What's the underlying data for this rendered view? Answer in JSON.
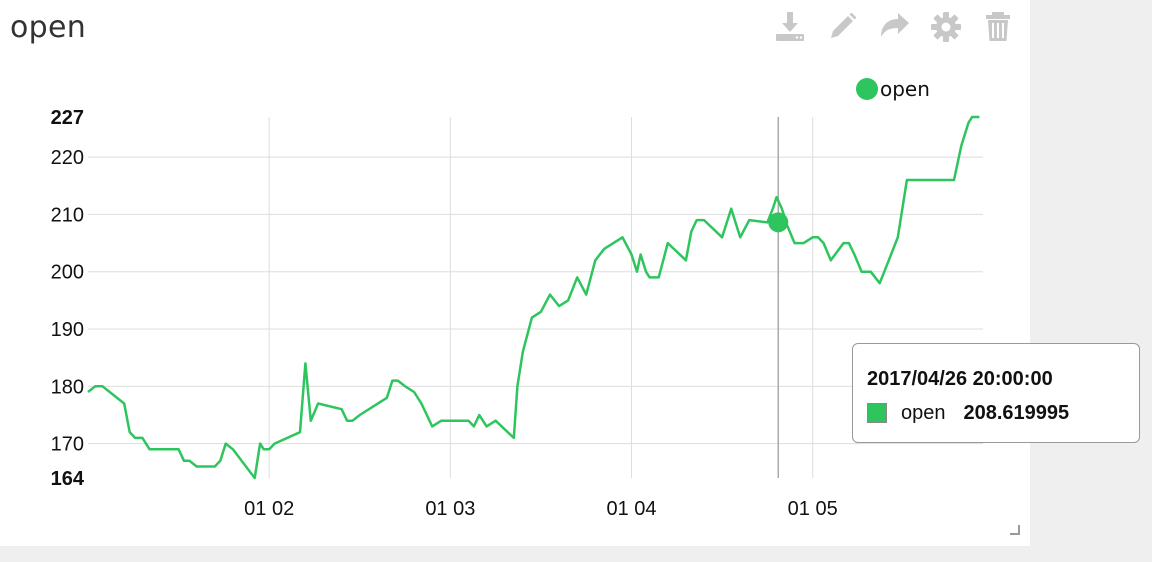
{
  "panel": {
    "title": "open",
    "toolbar": [
      {
        "name": "download-icon"
      },
      {
        "name": "pencil-icon"
      },
      {
        "name": "share-icon"
      },
      {
        "name": "gear-icon"
      },
      {
        "name": "trash-icon"
      }
    ]
  },
  "colors": {
    "series": "#2ec55e",
    "toolbar_icon": "#c8c8c8",
    "grid": "#dddddd"
  },
  "tooltip": {
    "time": "2017/04/26 20:00:00",
    "series": "open",
    "value": "208.619995"
  },
  "chart_data": {
    "type": "line",
    "title": "",
    "xlabel": "",
    "ylabel": "",
    "x_axis": {
      "min": 0.0,
      "max": 4.94,
      "ticks": [
        {
          "pos": 1,
          "label": "01 02"
        },
        {
          "pos": 2,
          "label": "01 03"
        },
        {
          "pos": 3,
          "label": "01 04"
        },
        {
          "pos": 4,
          "label": "01 05"
        }
      ]
    },
    "y_axis": {
      "min": 164,
      "max": 227,
      "ticks": [
        {
          "value": 170,
          "label": "170"
        },
        {
          "value": 180,
          "label": "180"
        },
        {
          "value": 190,
          "label": "190"
        },
        {
          "value": 200,
          "label": "200"
        },
        {
          "value": 210,
          "label": "210"
        },
        {
          "value": 220,
          "label": "220"
        }
      ],
      "bold_ticks": [
        {
          "value": 227,
          "label": "227"
        },
        {
          "value": 164,
          "label": "164"
        }
      ]
    },
    "grid": true,
    "legend": {
      "position": "top-right",
      "items": [
        "open"
      ]
    },
    "highlight": {
      "x": 3.81,
      "y": 208.619995
    },
    "series": [
      {
        "name": "open",
        "x": [
          0.0,
          0.04,
          0.08,
          0.12,
          0.2,
          0.23,
          0.26,
          0.3,
          0.34,
          0.5,
          0.53,
          0.56,
          0.6,
          0.7,
          0.73,
          0.76,
          0.8,
          0.92,
          0.95,
          0.97,
          1.0,
          1.03,
          1.17,
          1.2,
          1.23,
          1.27,
          1.4,
          1.43,
          1.46,
          1.5,
          1.65,
          1.68,
          1.71,
          1.75,
          1.8,
          1.84,
          1.9,
          1.95,
          1.98,
          2.01,
          2.1,
          2.13,
          2.16,
          2.2,
          2.25,
          2.35,
          2.37,
          2.4,
          2.45,
          2.5,
          2.55,
          2.6,
          2.65,
          2.7,
          2.75,
          2.8,
          2.85,
          2.9,
          2.95,
          3.0,
          3.03,
          3.05,
          3.08,
          3.1,
          3.15,
          3.2,
          3.3,
          3.33,
          3.36,
          3.4,
          3.5,
          3.55,
          3.6,
          3.65,
          3.75,
          3.78,
          3.8,
          3.83,
          3.86,
          3.9,
          3.95,
          4.0,
          4.03,
          4.06,
          4.1,
          4.17,
          4.2,
          4.23,
          4.27,
          4.32,
          4.37,
          4.42,
          4.47,
          4.52,
          4.57,
          4.6,
          4.62,
          4.67,
          4.73,
          4.78,
          4.82,
          4.86,
          4.88,
          4.92
        ],
        "y": [
          179,
          180,
          180,
          179,
          177,
          172,
          171,
          171,
          169,
          169,
          167,
          167,
          166,
          166,
          167,
          170,
          169,
          164,
          170,
          169,
          169,
          170,
          172,
          184,
          174,
          177,
          176,
          174,
          174,
          175,
          178,
          181,
          181,
          180,
          179,
          177,
          173,
          174,
          174,
          174,
          174,
          173,
          175,
          173,
          174,
          171,
          180,
          186,
          192,
          193,
          196,
          194,
          195,
          199,
          196,
          202,
          204,
          205,
          206,
          203,
          200,
          203,
          200,
          199,
          199,
          205,
          202,
          207,
          209,
          209,
          206,
          211,
          206,
          209,
          208.6,
          211,
          213,
          211,
          208,
          205,
          205,
          206,
          206,
          205,
          202,
          205,
          205,
          203,
          200,
          200,
          198,
          202,
          206,
          216,
          216,
          216,
          216,
          216,
          216,
          216,
          222,
          226,
          227,
          227
        ]
      }
    ]
  }
}
